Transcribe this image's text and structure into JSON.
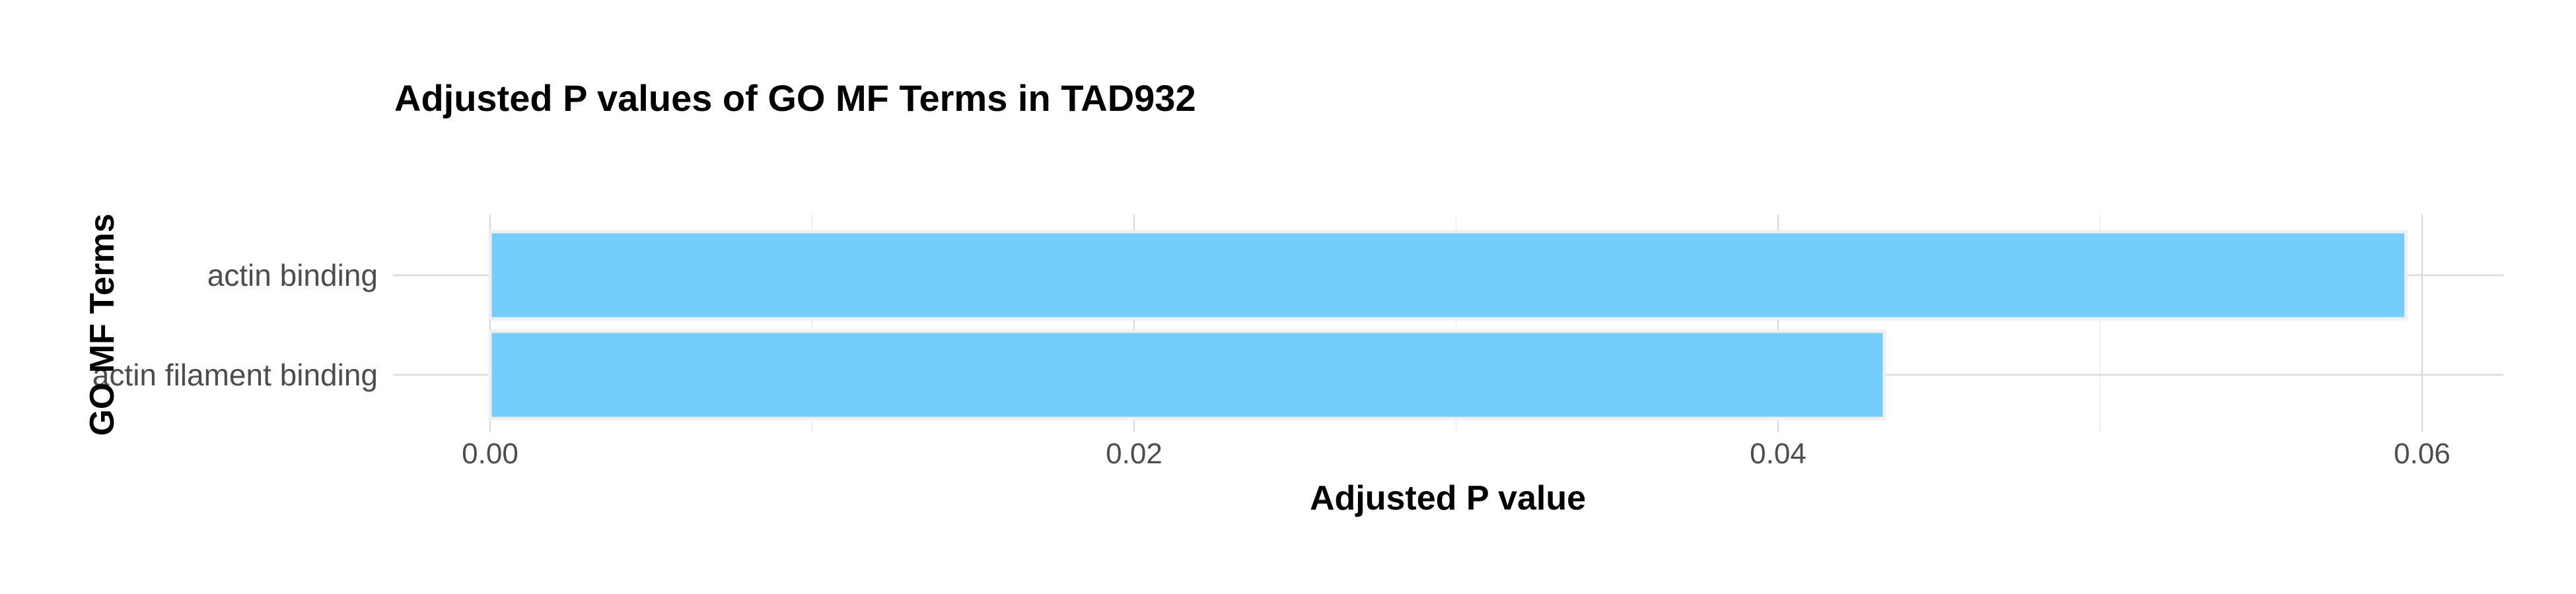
{
  "chart_data": {
    "type": "bar",
    "orientation": "horizontal",
    "title": "Adjusted P values of GO MF Terms in TAD932",
    "xlabel": "Adjusted P value",
    "ylabel": "GO MF Terms",
    "categories": [
      "actin binding",
      "actin filament binding"
    ],
    "values": [
      0.0595,
      0.0433
    ],
    "xlim": [
      0,
      0.0625
    ],
    "xticks": [
      0,
      0.02,
      0.04,
      0.06
    ],
    "xtick_labels": [
      "0.00",
      "0.02",
      "0.04",
      "0.06"
    ],
    "grid": true,
    "legend": "none",
    "bar_color": "#74CEFB",
    "bar_outline_color": "#F0F0F0"
  }
}
